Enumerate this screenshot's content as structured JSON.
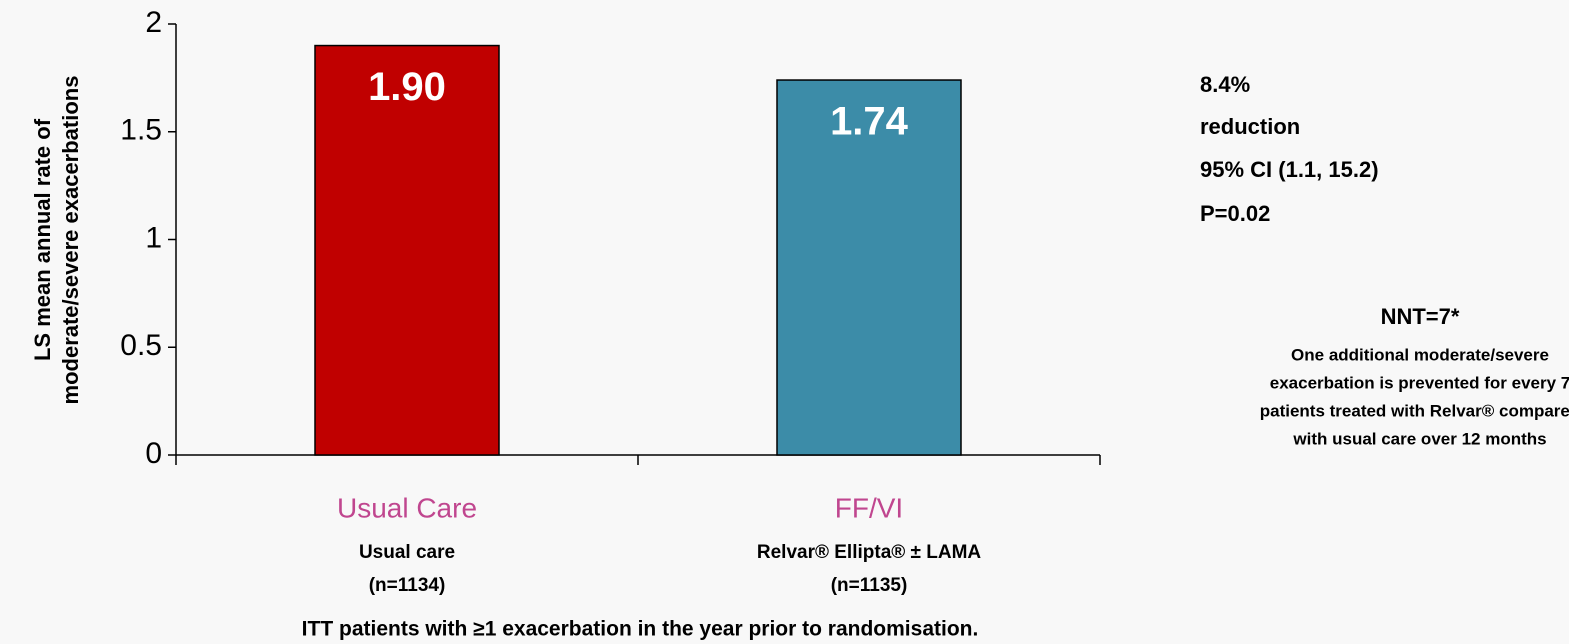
{
  "chart_data": {
    "type": "bar",
    "y_axis_label": [
      "LS mean annual rate of",
      "moderate/severe exacerbations"
    ],
    "categories": [
      "Usual Care",
      "FF/VI"
    ],
    "category_details": [
      [
        "Usual care",
        "(n=1134)"
      ],
      [
        "Relvar® Ellipta® ± LAMA",
        "(n=1135)"
      ]
    ],
    "values": [
      1.9,
      1.74
    ],
    "value_labels": [
      "1.90",
      "1.74"
    ],
    "colors": [
      "#c00000",
      "#3c8ca8"
    ],
    "ylim": [
      0,
      2
    ],
    "yticks": [
      0,
      0.5,
      1,
      1.5,
      2
    ],
    "annotations": [
      "8.4%",
      "reduction",
      "95% CI (1.1, 15.2)",
      "P=0.02"
    ],
    "nnt_title": "NNT=7*",
    "nnt_text": [
      "One additional moderate/severe",
      "exacerbation is prevented for every 7",
      "patients treated with Relvar® compared",
      "with usual care over 12 months"
    ],
    "footnote": "ITT patients with ≥1 exacerbation in the year prior to randomisation."
  }
}
